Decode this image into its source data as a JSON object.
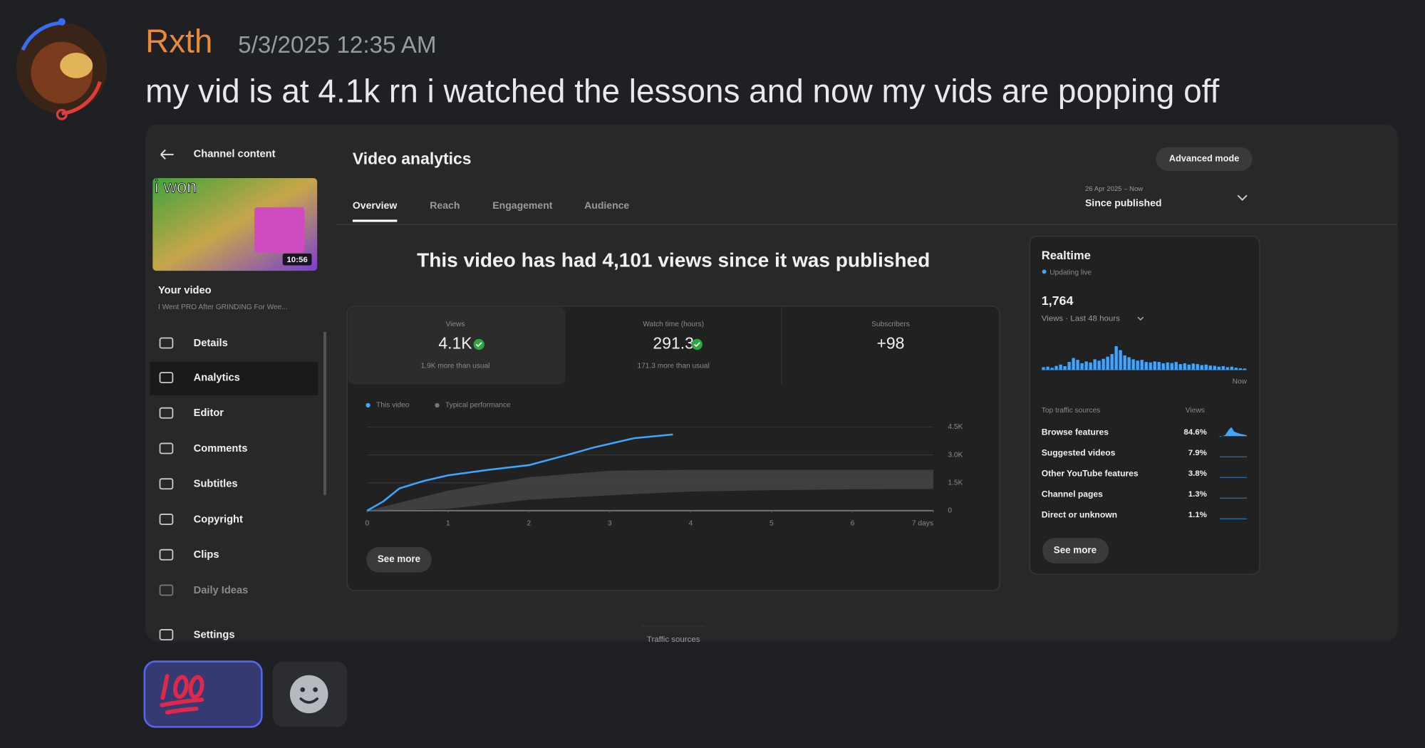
{
  "message": {
    "author": "Rxth",
    "timestamp": "5/3/2025 12:35 AM",
    "text": "my vid is at 4.1k rn i watched the lessons and now my vids are popping off"
  },
  "attachment": {
    "sidebar": {
      "back_label": "Channel content",
      "thumbnail_text": "i won",
      "duration": "10:56",
      "your_video": "Your video",
      "video_title": "I Went PRO After GRINDING For Wee...",
      "menu": [
        "Details",
        "Analytics",
        "Editor",
        "Comments",
        "Subtitles",
        "Copyright",
        "Clips",
        "Daily Ideas",
        "Settings"
      ]
    },
    "header": {
      "title": "Video analytics",
      "advanced_mode": "Advanced mode",
      "tabs": [
        "Overview",
        "Reach",
        "Engagement",
        "Audience"
      ],
      "date_range": "26 Apr 2025 – Now",
      "period": "Since published"
    },
    "headline": "This video has had 4,101 views since it was published",
    "metrics": [
      {
        "label": "Views",
        "value": "4.1K",
        "note": "1.9K more than usual"
      },
      {
        "label": "Watch time (hours)",
        "value": "291.3",
        "note": "171.3 more than usual"
      },
      {
        "label": "Subscribers",
        "value": "+98"
      }
    ],
    "see_more": "See more",
    "realtime": {
      "title": "Realtime",
      "status": "Updating live",
      "total": "1,764",
      "period": "Views · Last 48 hours",
      "now": "Now",
      "sources_header": "Top traffic sources",
      "views_header": "Views",
      "sources": [
        {
          "name": "Browse features",
          "share": "84.6%"
        },
        {
          "name": "Suggested videos",
          "share": "7.9%"
        },
        {
          "name": "Other YouTube features",
          "share": "3.8%"
        },
        {
          "name": "Channel pages",
          "share": "1.3%"
        },
        {
          "name": "Direct or unknown",
          "share": "1.1%"
        }
      ],
      "see_more": "See more"
    },
    "footer": "Traffic sources"
  },
  "chart_data": [
    {
      "type": "line",
      "xlim": [
        0,
        7
      ],
      "xticks": [
        0,
        1,
        2,
        3,
        4,
        5,
        6,
        {
          "value": 7,
          "label": "7 days"
        }
      ],
      "ylim": [
        0,
        4500
      ],
      "yticks": [
        0,
        {
          "value": 1500,
          "label": "1.5K"
        },
        {
          "value": 3000,
          "label": "3.0K"
        },
        {
          "value": 4500,
          "label": "4.5K"
        }
      ],
      "grid": true,
      "series": [
        {
          "name": "This video",
          "color": "#3ea6ff",
          "x": [
            0,
            0.2,
            0.4,
            0.7,
            1,
            1.5,
            2,
            2.5,
            2.8,
            3,
            3.3,
            3.78
          ],
          "values": [
            0,
            500,
            1200,
            1600,
            1900,
            2200,
            2450,
            3030,
            3400,
            3600,
            3900,
            4101
          ]
        },
        {
          "name": "Typical performance",
          "color": "#4a4a4a",
          "x": [
            0,
            1,
            2,
            3,
            4,
            5,
            6,
            7
          ],
          "values": [
            0,
            1076,
            1800,
            2150,
            2200,
            2200,
            2200,
            2200
          ],
          "low": [
            0,
            100,
            590,
            830,
            1030,
            1100,
            1150,
            1170
          ]
        }
      ]
    },
    {
      "type": "bar",
      "color": "#3ea6ff",
      "values": [
        10,
        12,
        8,
        15,
        20,
        14,
        30,
        45,
        38,
        25,
        32,
        28,
        40,
        35,
        42,
        50,
        60,
        90,
        75,
        55,
        48,
        40,
        35,
        38,
        30,
        28,
        32,
        30,
        25,
        28,
        26,
        30,
        22,
        25,
        20,
        24,
        22,
        18,
        20,
        16,
        15,
        12,
        14,
        10,
        12,
        8,
        6,
        5
      ]
    }
  ]
}
